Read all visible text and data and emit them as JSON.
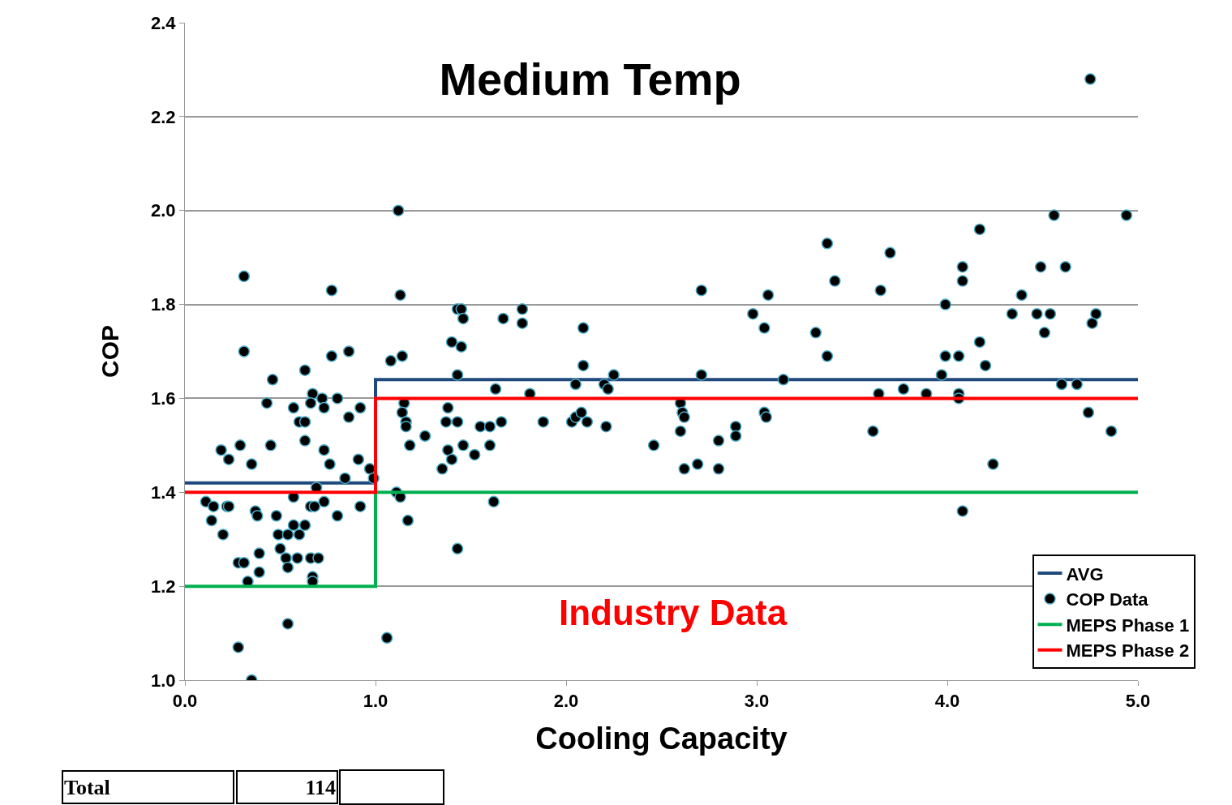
{
  "chart_data": {
    "type": "scatter",
    "title": "Medium Temp",
    "xlabel": "Cooling Capacity",
    "ylabel": "COP",
    "xlim": [
      0,
      5
    ],
    "xticks": [
      {
        "value": 0,
        "label": "0.0"
      },
      {
        "value": 1,
        "label": "1.0"
      },
      {
        "value": 2,
        "label": "2.0"
      },
      {
        "value": 3,
        "label": "3.0"
      },
      {
        "value": 4,
        "label": "4.0"
      },
      {
        "value": 5,
        "label": "5.0"
      }
    ],
    "ylim": [
      1,
      2.4
    ],
    "yticks": [
      {
        "value": 1,
        "label": "1.0"
      },
      {
        "value": 1.2,
        "label": "1.2"
      },
      {
        "value": 1.4,
        "label": "1.4"
      },
      {
        "value": 1.6,
        "label": "1.6"
      },
      {
        "value": 1.8,
        "label": "1.8"
      },
      {
        "value": 2,
        "label": "2.0"
      },
      {
        "value": 2.2,
        "label": "2.2"
      },
      {
        "value": 2.4,
        "label": "2.4"
      }
    ],
    "grid": "y",
    "legend": "bottom right",
    "marker": "circle",
    "annotations": [
      "Industry Data",
      "Total",
      "114"
    ],
    "series": [
      {
        "name": "AVG",
        "type": "step",
        "marker": "none",
        "color": "#1f497d",
        "x": [
          0,
          1,
          5
        ],
        "values": [
          1.42,
          1.64,
          1.64
        ]
      },
      {
        "name": "COP Data",
        "color": "#000000",
        "x": [
          0.31,
          0.77,
          0.31,
          0.86,
          0.77,
          0.46,
          0.63,
          0.43,
          0.67,
          0.66,
          0.72,
          0.8,
          0.57,
          0.73,
          0.92,
          0.86,
          0.6,
          0.63,
          0.63,
          0.19,
          0.29,
          0.45,
          0.73,
          0.23,
          0.35,
          0.76,
          0.91,
          0.97,
          0.84,
          0.99,
          0.69,
          0.11,
          0.15,
          0.22,
          0.23,
          0.57,
          0.66,
          0.68,
          0.73,
          0.92,
          0.37,
          0.38,
          0.48,
          0.14,
          0.2,
          0.49,
          0.54,
          0.6,
          0.57,
          0.63,
          0.5,
          0.39,
          0.53,
          0.59,
          0.66,
          0.7,
          0.28,
          0.31,
          0.39,
          0.54,
          0.67,
          0.67,
          0.33,
          0.54,
          0.28,
          0.35,
          0.8,
          1.06,
          1.12,
          1.13,
          1.08,
          1.14,
          1.43,
          1.45,
          1.46,
          1.67,
          1.77,
          1.77,
          1.4,
          1.45,
          1.43,
          2.09,
          2.09,
          1.63,
          1.81,
          2.05,
          2.2,
          2.22,
          2.25,
          1.15,
          1.14,
          1.16,
          1.16,
          1.26,
          1.18,
          1.38,
          1.37,
          1.43,
          1.55,
          1.6,
          1.66,
          1.88,
          2.03,
          2.05,
          2.08,
          2.11,
          2.21,
          1.38,
          1.4,
          1.35,
          1.46,
          1.52,
          1.6,
          1.11,
          1.13,
          1.17,
          1.62,
          1.43,
          2.46,
          2.71,
          3.06,
          3.37,
          3.41,
          3.65,
          2.98,
          3.04,
          3.31,
          3.37,
          2.71,
          3.14,
          3.64,
          2.6,
          2.61,
          2.62,
          2.6,
          3.04,
          3.05,
          2.89,
          2.89,
          2.8,
          2.62,
          2.69,
          2.8,
          3.61,
          4.17,
          4.56,
          4.94,
          3.7,
          4.08,
          4.08,
          4.49,
          4.62,
          4.39,
          3.99,
          4.34,
          4.47,
          4.54,
          4.78,
          4.76,
          4.51,
          4.17,
          3.99,
          4.06,
          4.2,
          3.97,
          3.77,
          3.89,
          4.06,
          4.06,
          4.6,
          4.68,
          4.74,
          4.86,
          4.24,
          4.08,
          4.75
        ],
        "values": [
          1.86,
          1.83,
          1.7,
          1.7,
          1.69,
          1.64,
          1.66,
          1.59,
          1.61,
          1.59,
          1.6,
          1.6,
          1.58,
          1.58,
          1.58,
          1.56,
          1.55,
          1.55,
          1.51,
          1.49,
          1.5,
          1.5,
          1.49,
          1.47,
          1.46,
          1.46,
          1.47,
          1.45,
          1.43,
          1.43,
          1.41,
          1.38,
          1.37,
          1.37,
          1.37,
          1.39,
          1.37,
          1.37,
          1.38,
          1.37,
          1.36,
          1.35,
          1.35,
          1.34,
          1.31,
          1.31,
          1.31,
          1.31,
          1.33,
          1.33,
          1.28,
          1.27,
          1.26,
          1.26,
          1.26,
          1.26,
          1.25,
          1.25,
          1.23,
          1.24,
          1.22,
          1.21,
          1.21,
          1.12,
          1.07,
          1.0,
          1.35,
          1.09,
          2.0,
          1.82,
          1.68,
          1.69,
          1.79,
          1.79,
          1.77,
          1.77,
          1.79,
          1.76,
          1.72,
          1.71,
          1.65,
          1.75,
          1.67,
          1.62,
          1.61,
          1.63,
          1.63,
          1.62,
          1.65,
          1.59,
          1.57,
          1.55,
          1.54,
          1.52,
          1.5,
          1.58,
          1.55,
          1.55,
          1.54,
          1.54,
          1.55,
          1.55,
          1.55,
          1.56,
          1.57,
          1.55,
          1.54,
          1.49,
          1.47,
          1.45,
          1.5,
          1.48,
          1.5,
          1.4,
          1.39,
          1.34,
          1.38,
          1.28,
          1.5,
          1.83,
          1.82,
          1.93,
          1.85,
          1.83,
          1.78,
          1.75,
          1.74,
          1.69,
          1.65,
          1.64,
          1.61,
          1.59,
          1.57,
          1.56,
          1.53,
          1.57,
          1.56,
          1.54,
          1.52,
          1.51,
          1.45,
          1.46,
          1.45,
          1.53,
          1.96,
          1.99,
          1.99,
          1.91,
          1.88,
          1.85,
          1.88,
          1.88,
          1.82,
          1.8,
          1.78,
          1.78,
          1.78,
          1.78,
          1.76,
          1.74,
          1.72,
          1.69,
          1.69,
          1.67,
          1.65,
          1.62,
          1.61,
          1.61,
          1.6,
          1.63,
          1.63,
          1.57,
          1.53,
          1.46,
          1.36,
          2.28
        ]
      },
      {
        "name": "MEPS Phase 1",
        "type": "step",
        "marker": "none",
        "color": "#00b050",
        "x": [
          0,
          1,
          5
        ],
        "values": [
          1.2,
          1.4,
          1.4
        ]
      },
      {
        "name": "MEPS Phase 2",
        "type": "step",
        "marker": "none",
        "color": "#ff0000",
        "x": [
          0,
          1,
          5
        ],
        "values": [
          1.4,
          1.6,
          1.6
        ]
      }
    ]
  }
}
